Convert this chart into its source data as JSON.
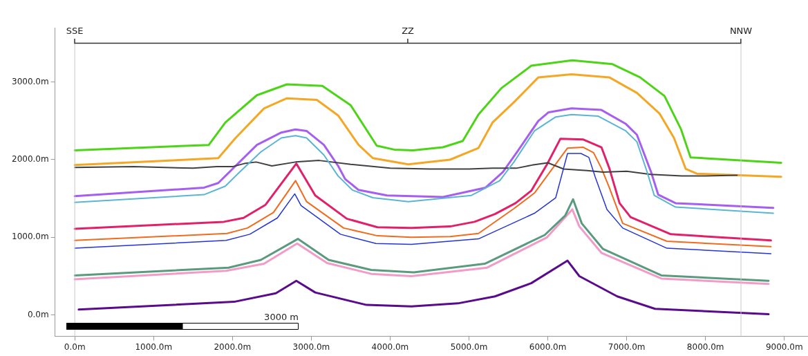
{
  "chart_data": {
    "type": "line",
    "xlim": [
      -250,
      9300
    ],
    "ylim": [
      -275,
      3700
    ],
    "xticks": [
      {
        "value": 0,
        "label": "0.0m"
      },
      {
        "value": 1000,
        "label": "1000.0m"
      },
      {
        "value": 2000,
        "label": "2000.0m"
      },
      {
        "value": 3000,
        "label": "3000.0m"
      },
      {
        "value": 4000,
        "label": "4000.0m"
      },
      {
        "value": 5000,
        "label": "5000.0m"
      },
      {
        "value": 6000,
        "label": "6000.0m"
      },
      {
        "value": 7000,
        "label": "7000.0m"
      },
      {
        "value": 8000,
        "label": "8000.0m"
      },
      {
        "value": 9000,
        "label": "9000.0m"
      }
    ],
    "yticks": [
      {
        "value": 0,
        "label": "0.0m"
      },
      {
        "value": 1000,
        "label": "1000.0m"
      },
      {
        "value": 2000,
        "label": "2000.0m"
      },
      {
        "value": 3000,
        "label": "3000.0m"
      }
    ],
    "grid": false,
    "legend": false,
    "marker": "none",
    "line_style": "solid",
    "series": [
      {
        "color": "#4cd416",
        "x": [
          0,
          1700,
          1910,
          2310,
          2690,
          3140,
          3500,
          3830,
          4050,
          4290,
          4670,
          4920,
          5120,
          5410,
          5790,
          6310,
          6820,
          7170,
          7480,
          7690,
          7810,
          8960
        ],
        "values": [
          2120,
          2190,
          2480,
          2830,
          2970,
          2950,
          2700,
          2180,
          2130,
          2120,
          2160,
          2240,
          2580,
          2920,
          3210,
          3280,
          3230,
          3060,
          2820,
          2390,
          2030,
          1960
        ]
      },
      {
        "color": "#f5a623",
        "x": [
          0,
          1820,
          2040,
          2400,
          2690,
          3070,
          3340,
          3600,
          3780,
          4230,
          4760,
          5120,
          5300,
          5570,
          5880,
          6300,
          6780,
          7130,
          7420,
          7600,
          7750,
          7890,
          8960
        ],
        "values": [
          1930,
          2020,
          2280,
          2660,
          2790,
          2770,
          2570,
          2190,
          2020,
          1940,
          2000,
          2150,
          2480,
          2740,
          3060,
          3100,
          3060,
          2860,
          2590,
          2280,
          1880,
          1820,
          1780
        ]
      },
      {
        "color": "#a55ef0",
        "x": [
          0,
          1640,
          1820,
          2040,
          2310,
          2620,
          2800,
          2940,
          3160,
          3340,
          3430,
          3600,
          3960,
          4670,
          5210,
          5430,
          5610,
          5880,
          6010,
          6300,
          6680,
          6990,
          7130,
          7310,
          7400,
          7620,
          8860
        ],
        "values": [
          1530,
          1640,
          1700,
          1920,
          2190,
          2350,
          2390,
          2370,
          2190,
          1920,
          1750,
          1610,
          1540,
          1520,
          1640,
          1840,
          2100,
          2500,
          2610,
          2660,
          2640,
          2460,
          2320,
          1840,
          1550,
          1440,
          1380
        ]
      },
      {
        "color": "#5ab4d6",
        "x": [
          0,
          1640,
          1910,
          2090,
          2360,
          2620,
          2800,
          2940,
          3160,
          3340,
          3520,
          3780,
          4230,
          5030,
          5390,
          5570,
          5830,
          6100,
          6300,
          6640,
          6990,
          7130,
          7260,
          7350,
          7620,
          8860
        ],
        "values": [
          1450,
          1550,
          1660,
          1840,
          2100,
          2280,
          2310,
          2280,
          2060,
          1790,
          1610,
          1510,
          1460,
          1540,
          1730,
          1970,
          2370,
          2550,
          2580,
          2560,
          2370,
          2230,
          1840,
          1540,
          1390,
          1310
        ]
      },
      {
        "color": "#404040",
        "x": [
          0,
          750,
          1500,
          1800,
          2000,
          2150,
          2300,
          2500,
          2800,
          3100,
          3500,
          4000,
          4500,
          5000,
          5300,
          5600,
          5800,
          6000,
          6200,
          6500,
          6700,
          7000,
          7300,
          7700,
          8000,
          8400
        ],
        "values": [
          1900,
          1910,
          1890,
          1910,
          1910,
          1950,
          1970,
          1920,
          1970,
          1990,
          1940,
          1890,
          1880,
          1880,
          1890,
          1890,
          1930,
          1960,
          1880,
          1860,
          1840,
          1850,
          1810,
          1790,
          1790,
          1800
        ]
      },
      {
        "color": "#e2206a",
        "x": [
          0,
          1890,
          2140,
          2420,
          2810,
          3050,
          3450,
          3840,
          4270,
          4760,
          5070,
          5330,
          5590,
          5790,
          5990,
          6160,
          6450,
          6680,
          6780,
          6910,
          7050,
          7560,
          8830
        ],
        "values": [
          1110,
          1200,
          1250,
          1420,
          1950,
          1540,
          1240,
          1130,
          1120,
          1140,
          1200,
          1300,
          1440,
          1600,
          1940,
          2270,
          2260,
          2160,
          1890,
          1440,
          1260,
          1040,
          960
        ]
      },
      {
        "color": "#f26b1d",
        "x": [
          0,
          1930,
          2190,
          2520,
          2800,
          2940,
          3410,
          3840,
          4270,
          4760,
          5120,
          5570,
          5830,
          6250,
          6450,
          6580,
          6680,
          6780,
          6950,
          7510,
          8830
        ],
        "values": [
          960,
          1050,
          1120,
          1320,
          1730,
          1460,
          1120,
          1020,
          1000,
          1010,
          1050,
          1370,
          1570,
          2150,
          2160,
          2090,
          1890,
          1640,
          1180,
          950,
          880
        ]
      },
      {
        "color": "#2233dd",
        "x": [
          0,
          1920,
          2220,
          2570,
          2790,
          2870,
          3370,
          3820,
          4270,
          5120,
          5830,
          6100,
          6250,
          6420,
          6520,
          6600,
          6750,
          6950,
          7510,
          8830
        ],
        "values": [
          860,
          960,
          1040,
          1250,
          1560,
          1410,
          1040,
          920,
          910,
          980,
          1310,
          1510,
          2080,
          2080,
          2030,
          1780,
          1360,
          1120,
          860,
          790
        ]
      },
      {
        "color": "#5a9a7e",
        "x": [
          0,
          1950,
          2360,
          2830,
          3220,
          3760,
          4300,
          5200,
          5960,
          6220,
          6320,
          6430,
          6700,
          7440,
          8800
        ],
        "values": [
          510,
          610,
          710,
          980,
          710,
          580,
          550,
          660,
          1030,
          1280,
          1490,
          1180,
          850,
          510,
          440
        ]
      },
      {
        "color": "#f29ac8",
        "x": [
          0,
          1920,
          2400,
          2820,
          3200,
          3760,
          4270,
          5230,
          5990,
          6310,
          6400,
          6680,
          7440,
          8800
        ],
        "values": [
          460,
          570,
          660,
          920,
          670,
          530,
          500,
          610,
          1000,
          1360,
          1140,
          800,
          470,
          400
        ]
      },
      {
        "color": "#5a0a8c",
        "x": [
          50,
          2020,
          2550,
          2810,
          3050,
          3700,
          4270,
          4860,
          5330,
          5790,
          6250,
          6400,
          6880,
          7360,
          8800
        ],
        "values": [
          70,
          170,
          280,
          440,
          290,
          130,
          110,
          150,
          240,
          410,
          700,
          500,
          240,
          80,
          10
        ]
      }
    ],
    "ref_lines": [
      {
        "axis": "x",
        "value": 0,
        "color": "#c8c8c8"
      },
      {
        "axis": "x",
        "value": 8450,
        "color": "#c8c8c8"
      }
    ],
    "annotations": [
      "SSE",
      "ZZ",
      "NNW",
      "3000 m"
    ]
  }
}
